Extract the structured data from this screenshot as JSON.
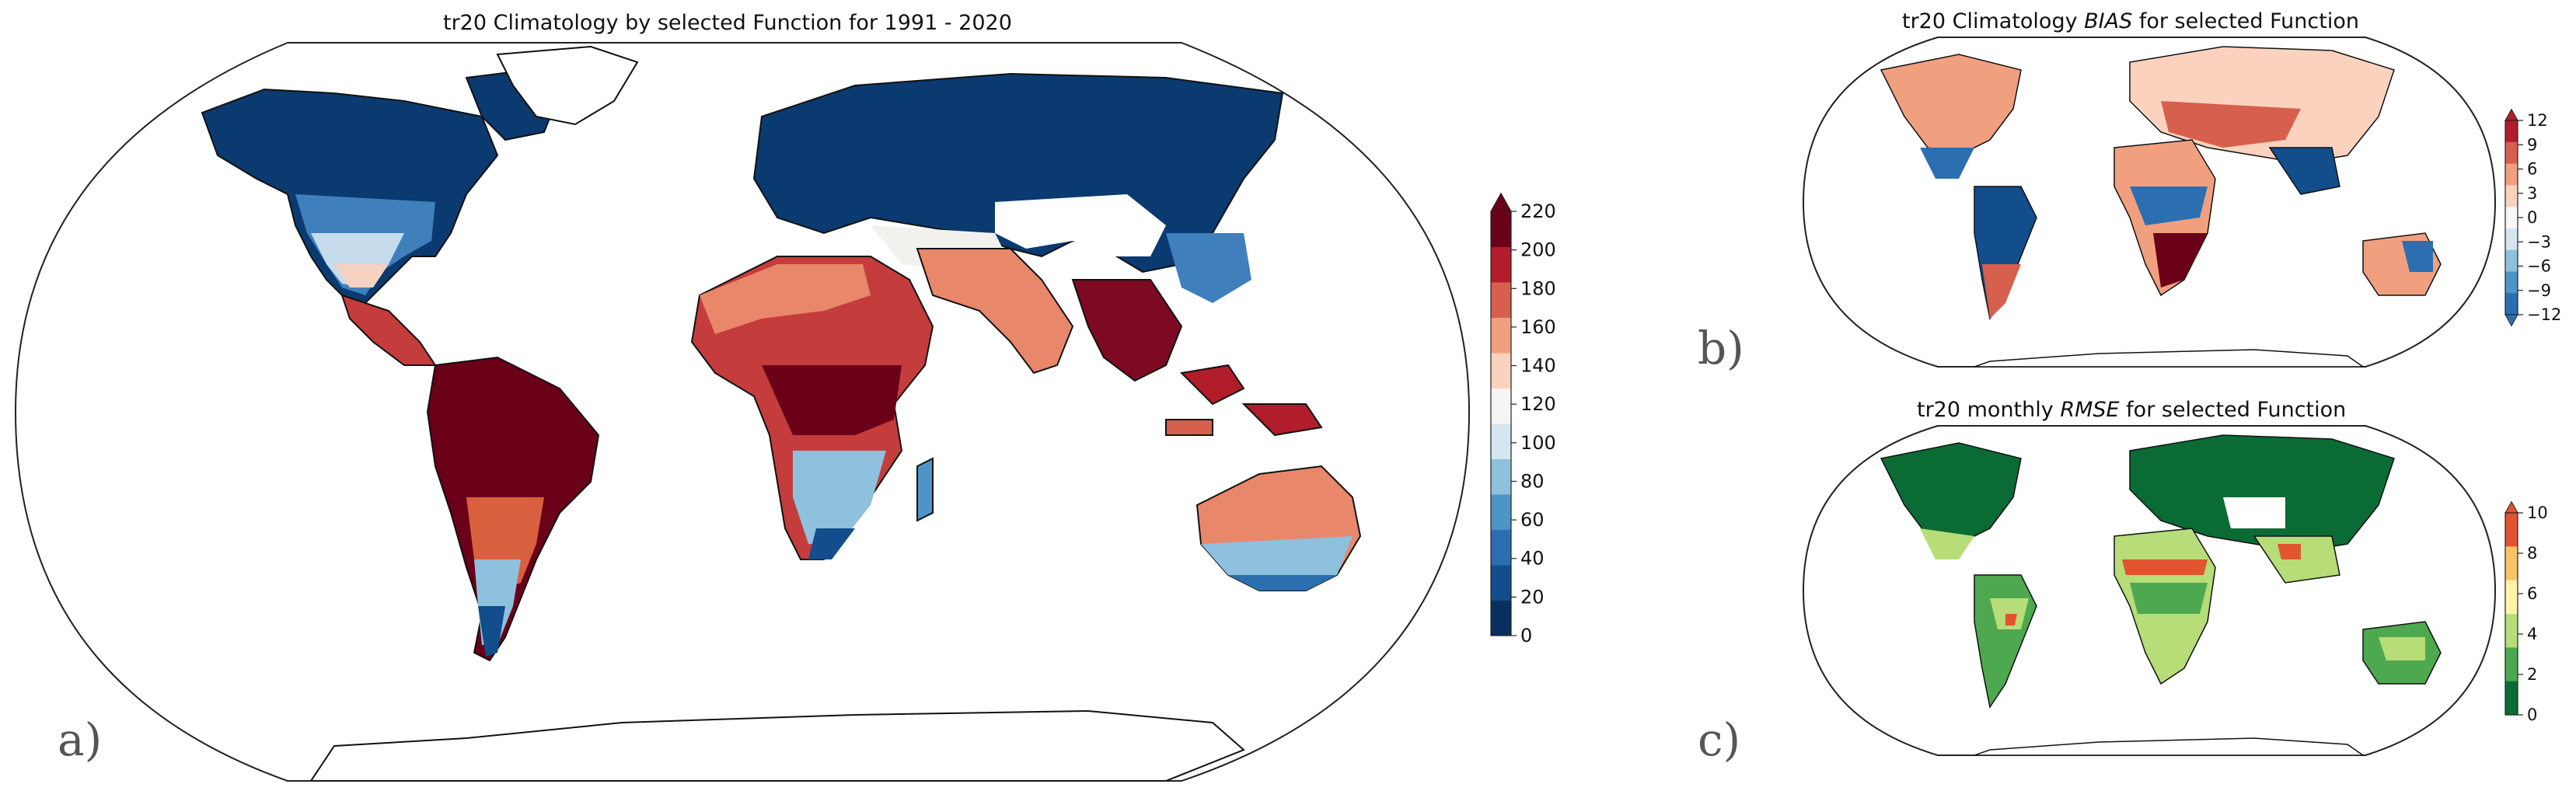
{
  "panels": [
    {
      "id": "a",
      "letter": "a)",
      "title_pre": "tr20 Climatology by selected Function for 1991 - 2020",
      "title_italic": "",
      "title_post": "",
      "colorbar": {
        "ticks": [
          "0",
          "20",
          "40",
          "60",
          "80",
          "100",
          "120",
          "140",
          "160",
          "180",
          "200",
          "220"
        ],
        "colors": [
          "#08305f",
          "#124d8c",
          "#2c6fb0",
          "#4d94c7",
          "#8fc0dd",
          "#d5e6f1",
          "#f7f5f3",
          "#fbd2bd",
          "#f1a07f",
          "#d65f4d",
          "#b11d2b",
          "#6b0019"
        ],
        "extend": "max"
      }
    },
    {
      "id": "b",
      "letter": "b)",
      "title_pre": "tr20 Climatology ",
      "title_italic": "BIAS",
      "title_post": " for selected Function",
      "colorbar": {
        "ticks": [
          "12",
          "9",
          "6",
          "3",
          "0",
          "−3",
          "−6",
          "−9",
          "−12"
        ],
        "colors": [
          "#b11d2b",
          "#d65f4d",
          "#f1a07f",
          "#fbd2bd",
          "#f7f7f7",
          "#d5e6f1",
          "#8fc0dd",
          "#4d94c7",
          "#2c6fb0"
        ],
        "extend": "both"
      }
    },
    {
      "id": "c",
      "letter": "c)",
      "title_pre": "tr20 monthly ",
      "title_italic": "RMSE",
      "title_post": " for selected Function",
      "colorbar": {
        "ticks": [
          "10",
          "8",
          "6",
          "4",
          "2",
          "0"
        ],
        "colors": [
          "#e2542f",
          "#fbc267",
          "#fff3a8",
          "#b6dd78",
          "#4ea84f",
          "#0b6b35"
        ],
        "extend": "max"
      }
    }
  ]
}
